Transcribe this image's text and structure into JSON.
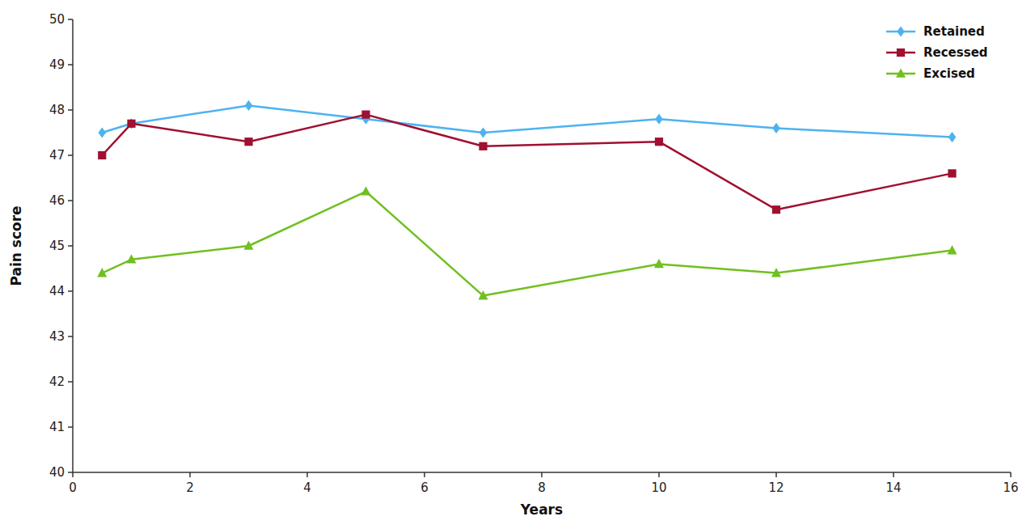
{
  "chart_data": {
    "type": "line",
    "x": [
      0.5,
      1,
      3,
      5,
      7,
      10,
      12,
      15
    ],
    "series": [
      {
        "name": "Retained",
        "color": "#4db3f0",
        "marker": "diamond",
        "values": [
          47.5,
          47.7,
          48.1,
          47.8,
          47.5,
          47.8,
          47.6,
          47.4
        ]
      },
      {
        "name": "Recessed",
        "color": "#a01030",
        "marker": "square",
        "values": [
          47.0,
          47.7,
          47.3,
          47.9,
          47.2,
          47.3,
          45.8,
          46.6
        ]
      },
      {
        "name": "Excised",
        "color": "#70c020",
        "marker": "triangle",
        "values": [
          44.4,
          44.7,
          45.0,
          46.2,
          43.9,
          44.6,
          44.4,
          44.9
        ]
      }
    ],
    "xlabel": "Years",
    "ylabel": "Pain score",
    "xlim": [
      0,
      16
    ],
    "ylim": [
      40,
      50
    ],
    "xticks": [
      0,
      2,
      4,
      6,
      8,
      10,
      12,
      14,
      16
    ],
    "yticks": [
      40,
      41,
      42,
      43,
      44,
      45,
      46,
      47,
      48,
      49,
      50
    ],
    "legend": "upper right",
    "grid": false
  }
}
